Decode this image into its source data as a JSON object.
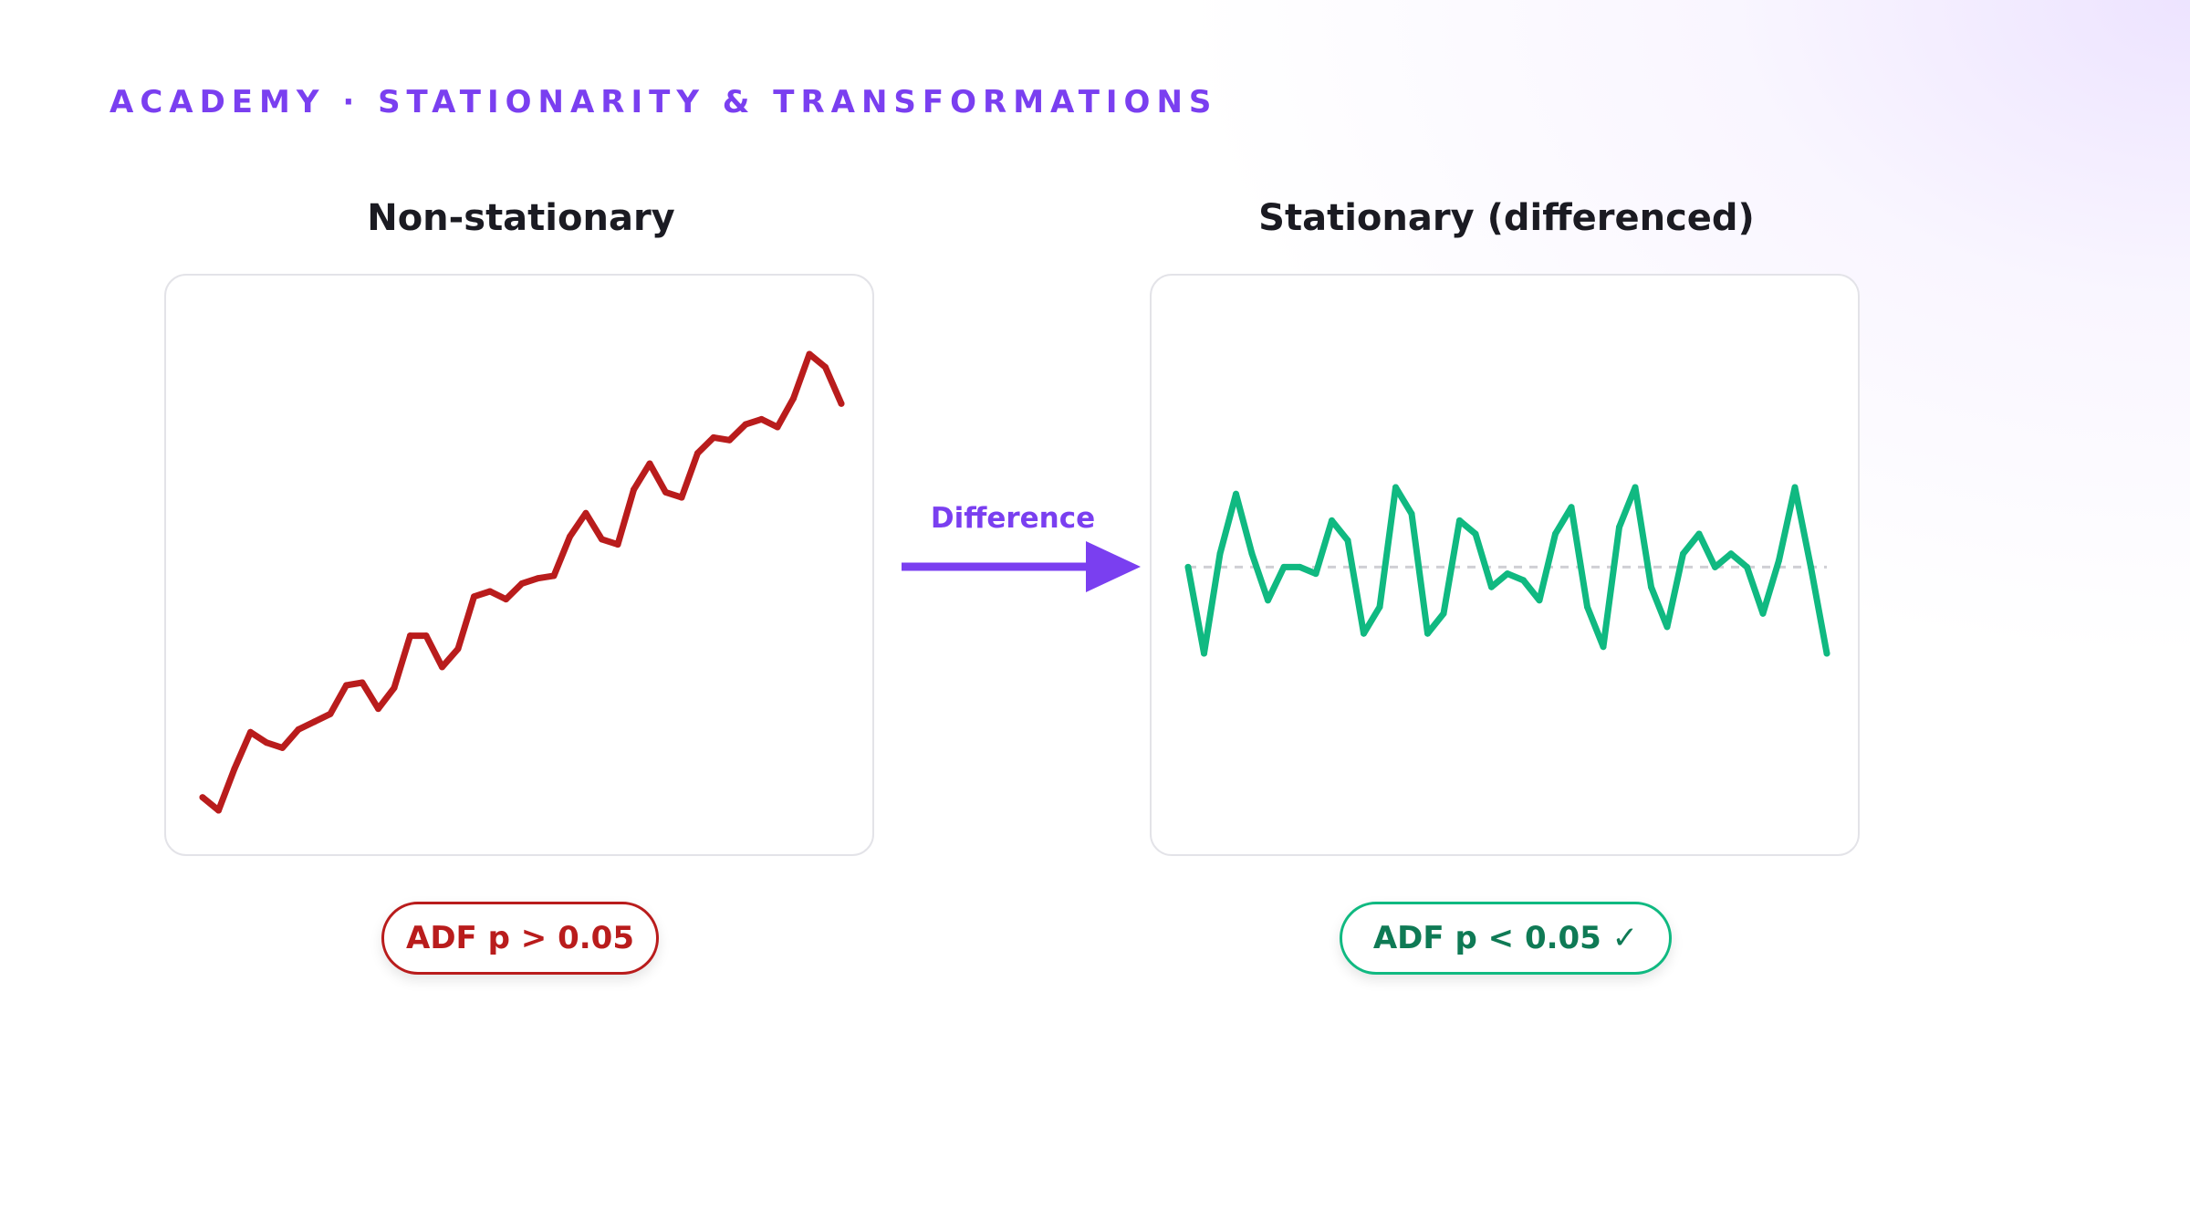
{
  "header": {
    "eyebrow": "ACADEMY · STATIONARITY & TRANSFORMATIONS"
  },
  "transform": {
    "label": "Difference",
    "color": "#7a3ff0"
  },
  "colors": {
    "nonstationary": "#b91c1c",
    "stationary": "#10b981",
    "stationary_text": "#0f7a55",
    "zero_line": "#cfcfd4"
  },
  "chart_data": [
    {
      "type": "line",
      "title": "Non-stationary",
      "badge": "ADF p > 0.05",
      "xlabel": "",
      "ylabel": "",
      "grid": false,
      "series": [
        {
          "values": [
            0.8,
            0.3,
            1.9,
            3.3,
            2.9,
            2.7,
            3.4,
            3.7,
            4.0,
            5.1,
            5.2,
            4.2,
            5.0,
            7.0,
            7.0,
            5.8,
            6.5,
            8.5,
            8.7,
            8.4,
            9.0,
            9.2,
            9.3,
            10.8,
            11.7,
            10.7,
            10.5,
            12.6,
            13.6,
            12.5,
            12.3,
            14.0,
            14.6,
            14.5,
            15.1,
            15.3,
            15.0,
            16.1,
            17.8,
            17.3,
            15.9
          ]
        }
      ]
    },
    {
      "type": "line",
      "title": "Stationary (differenced)",
      "badge": "ADF p < 0.05 ✓",
      "xlabel": "",
      "ylabel": "",
      "grid": false,
      "zero_line": true,
      "series": [
        {
          "values": [
            0.0,
            -1.3,
            0.2,
            1.1,
            0.2,
            -0.5,
            0.0,
            0.0,
            -0.1,
            0.7,
            0.4,
            -1.0,
            -0.6,
            1.2,
            0.8,
            -1.0,
            -0.7,
            0.7,
            0.5,
            -0.3,
            -0.1,
            -0.2,
            -0.5,
            0.5,
            0.9,
            -0.6,
            -1.2,
            0.6,
            1.2,
            -0.3,
            -0.9,
            0.2,
            0.5,
            0.0,
            0.2,
            0.0,
            -0.7,
            0.1,
            1.2,
            0.0,
            -1.3
          ]
        }
      ]
    }
  ]
}
